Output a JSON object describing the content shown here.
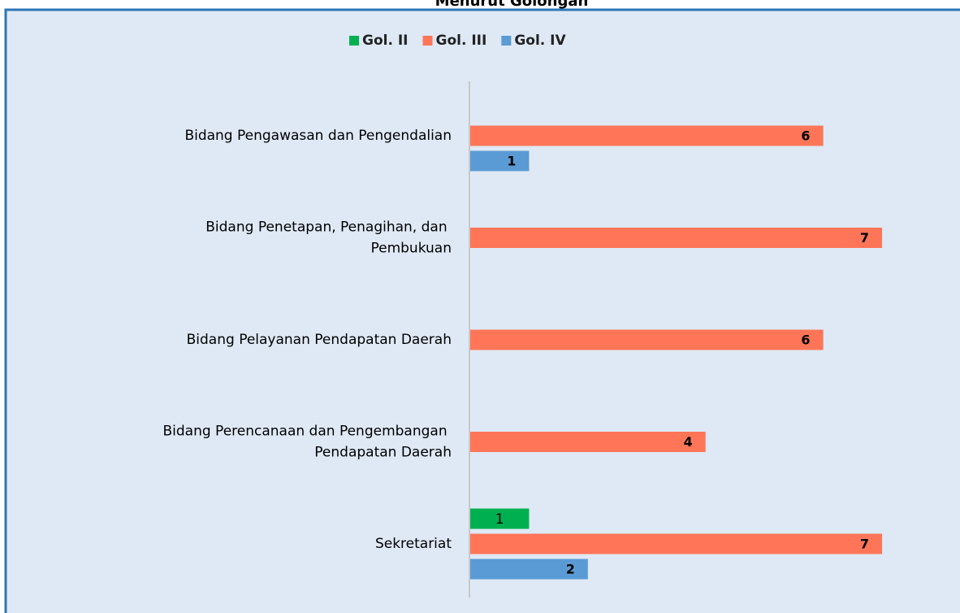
{
  "chart_data": {
    "type": "barh",
    "title": "Menurut Golongan",
    "categories": [
      "Bidang Pengawasan dan Pengendalian",
      "Bidang Penetapan, Penagihan, dan Pembukuan",
      "Bidang Pelayanan Pendapatan Daerah",
      "Bidang Perencanaan dan Pengembangan Pendapatan Daerah",
      "Sekretariat"
    ],
    "series": [
      {
        "name": "Gol. II",
        "color": "#00b050",
        "values": [
          null,
          null,
          null,
          null,
          1
        ]
      },
      {
        "name": "Gol. III",
        "color": "#ff7557",
        "values": [
          6,
          7,
          6,
          4,
          7
        ]
      },
      {
        "name": "Gol. IV",
        "color": "#5b9bd5",
        "values": [
          1,
          null,
          null,
          null,
          2
        ]
      }
    ],
    "legend": "top"
  }
}
